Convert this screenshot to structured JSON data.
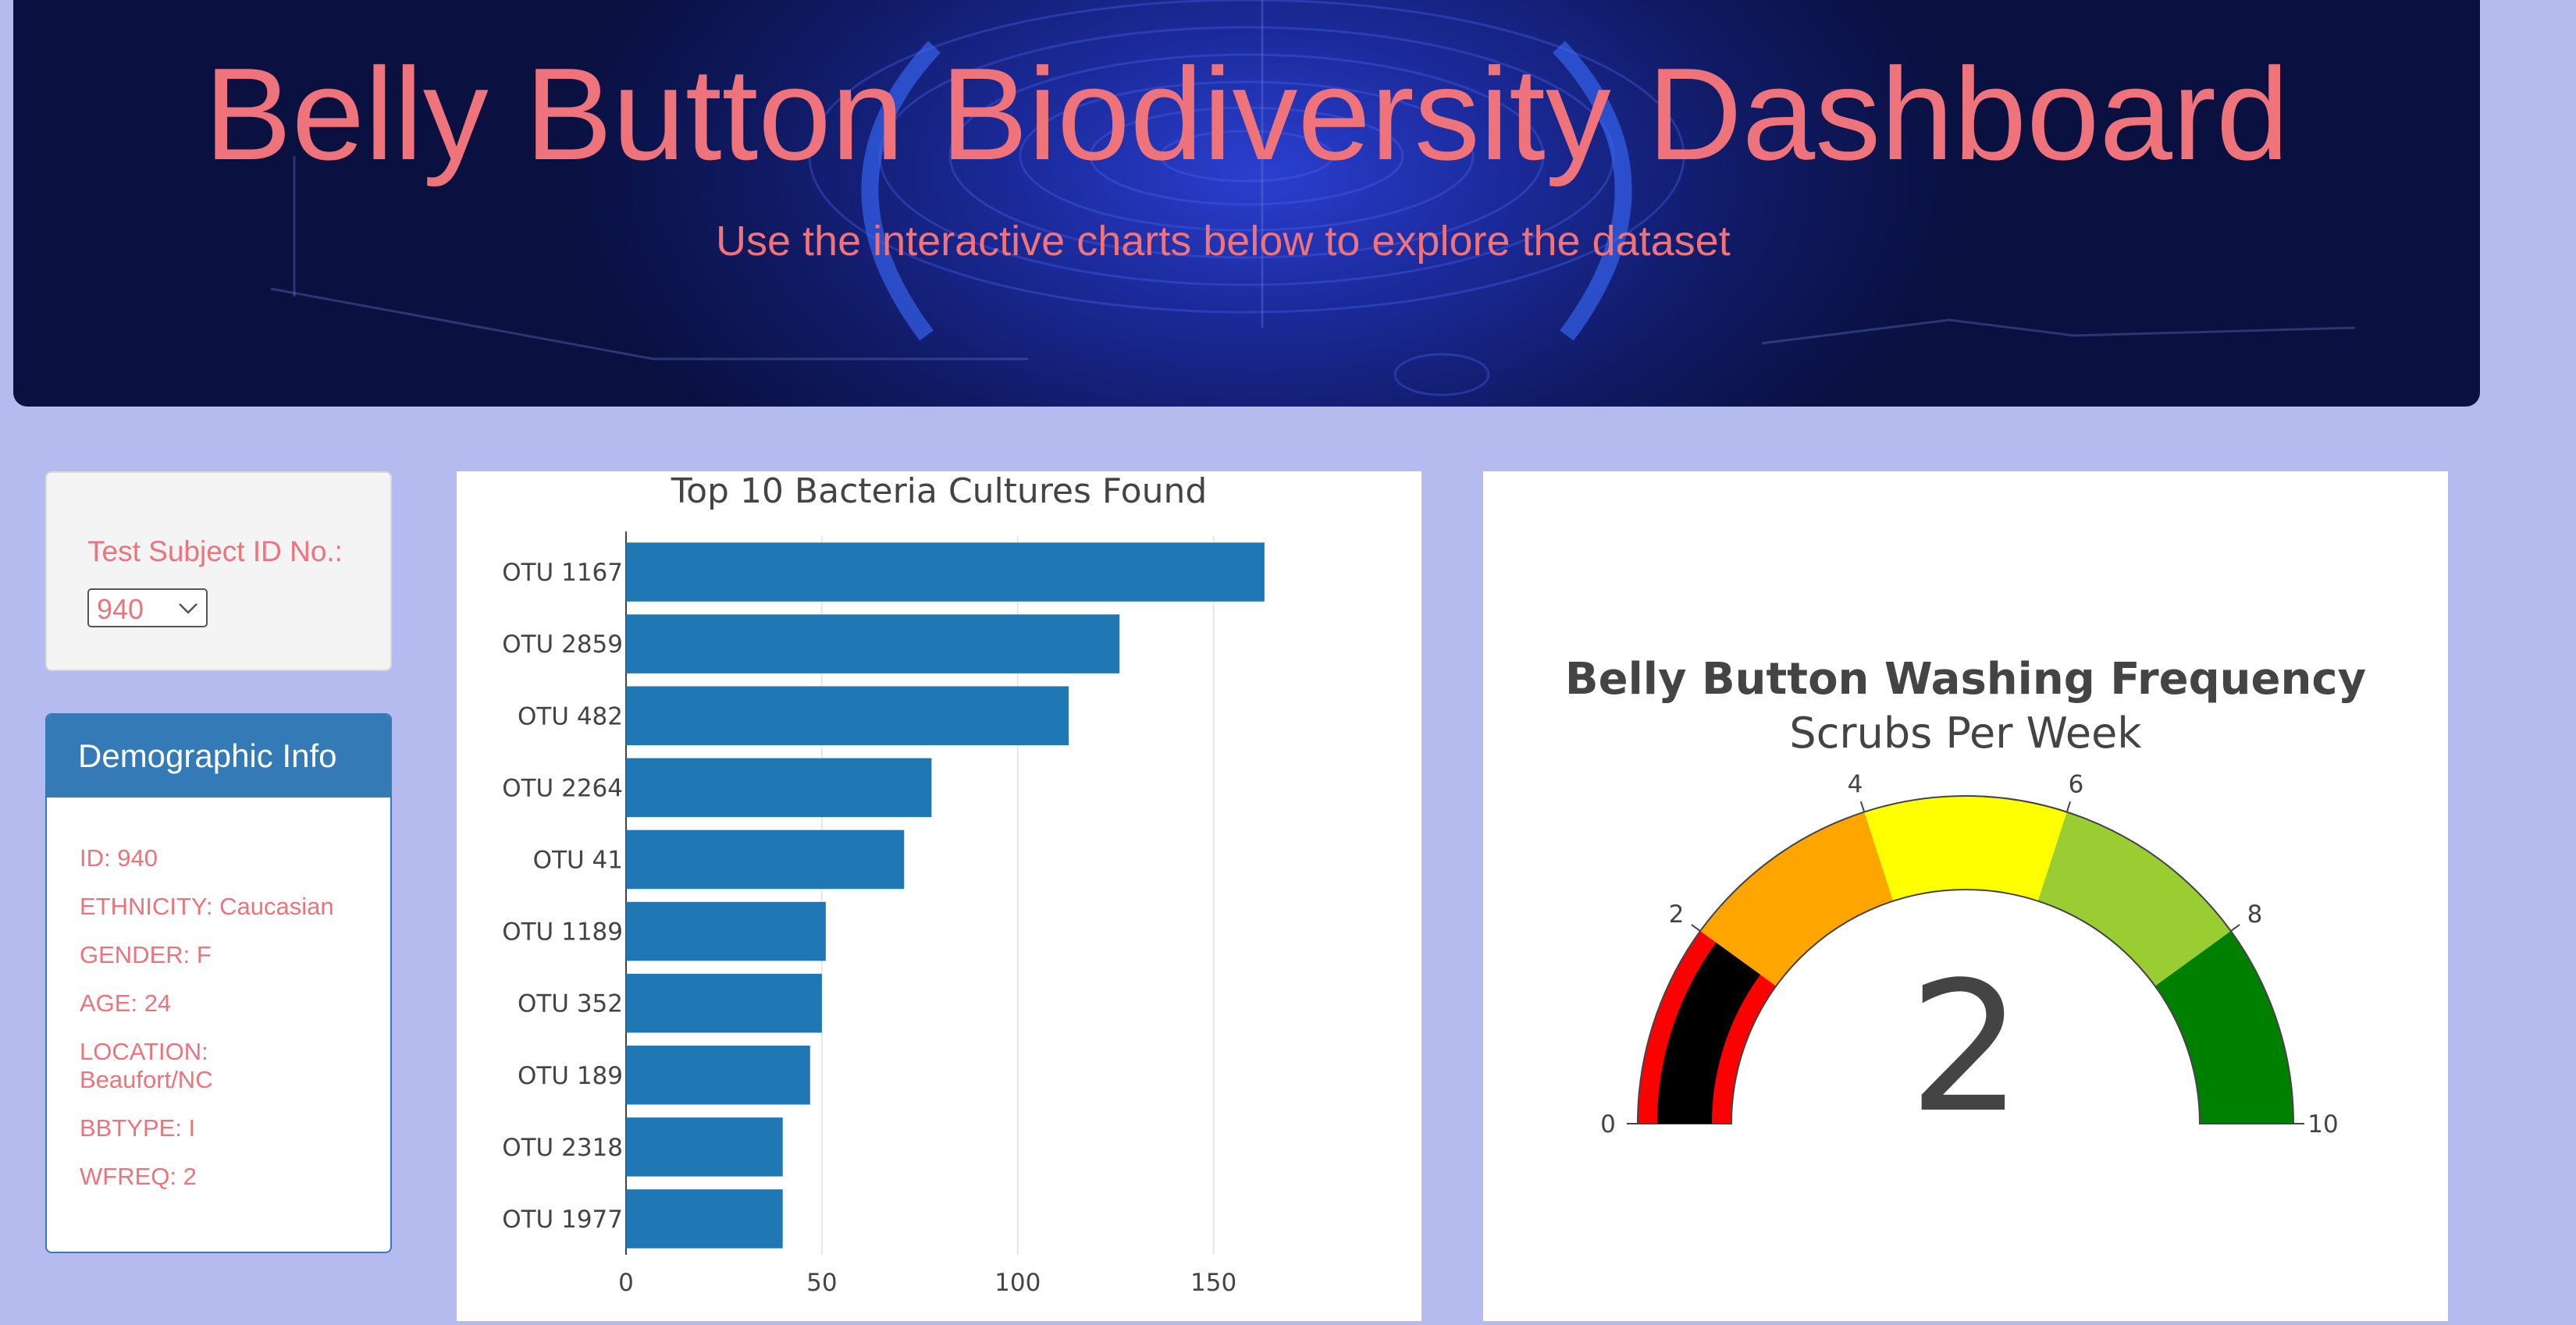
{
  "header": {
    "title": "Belly Button Biodiversity Dashboard",
    "subtitle": "Use the interactive charts below to explore the dataset"
  },
  "selector": {
    "label": "Test Subject ID No.:",
    "value": "940"
  },
  "demographics": {
    "heading": "Demographic Info",
    "items": [
      "ID: 940",
      "ETHNICITY: Caucasian",
      "GENDER: F",
      "AGE: 24",
      "LOCATION: Beaufort/NC",
      "BBTYPE: I",
      "WFREQ: 2"
    ]
  },
  "chart_data": [
    {
      "type": "bar",
      "orientation": "horizontal",
      "title": "Top 10 Bacteria Cultures Found",
      "categories": [
        "OTU 1167",
        "OTU 2859",
        "OTU 482",
        "OTU 2264",
        "OTU 41",
        "OTU 1189",
        "OTU 352",
        "OTU 189",
        "OTU 2318",
        "OTU 1977"
      ],
      "values": [
        163,
        126,
        113,
        78,
        71,
        51,
        50,
        47,
        40,
        40
      ],
      "xticks": [
        0,
        50,
        100,
        150
      ],
      "xlim": [
        0,
        172
      ],
      "grid": true,
      "bar_color": "#1f77b4"
    },
    {
      "type": "gauge",
      "title": "Belly Button Washing Frequency",
      "subtitle": "Scrubs Per Week",
      "value": 2,
      "range": [
        0,
        10
      ],
      "ticks": [
        0,
        2,
        4,
        6,
        8,
        10
      ],
      "steps": [
        {
          "range": [
            0,
            2
          ],
          "color": "#ff0000"
        },
        {
          "range": [
            2,
            4
          ],
          "color": "#ffa500"
        },
        {
          "range": [
            4,
            6
          ],
          "color": "#ffff00"
        },
        {
          "range": [
            6,
            8
          ],
          "color": "#9acd32"
        },
        {
          "range": [
            8,
            10
          ],
          "color": "#008000"
        }
      ],
      "bar_color": "#000000"
    }
  ]
}
